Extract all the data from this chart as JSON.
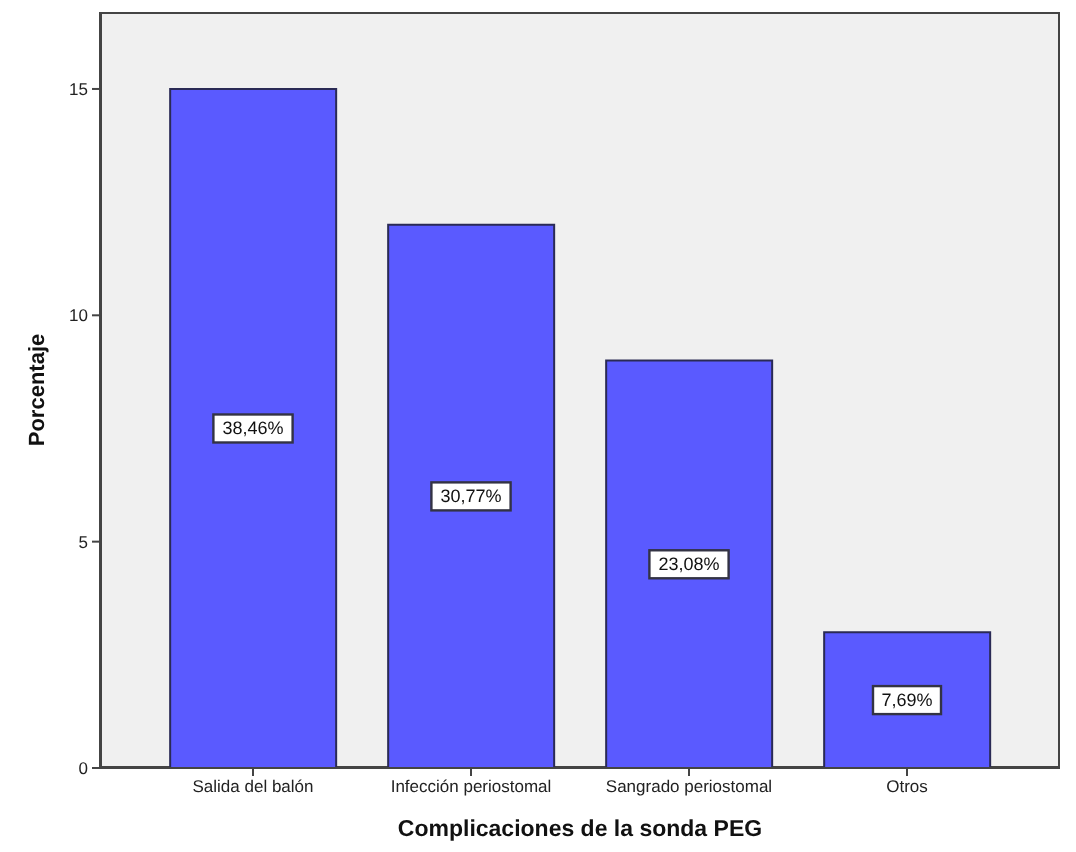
{
  "chart_data": {
    "type": "bar",
    "categories": [
      "Salida del balón",
      "Infección periostomal",
      "Sangrado periostomal",
      "Otros"
    ],
    "values": [
      15,
      12,
      9,
      3
    ],
    "color": "#5a5aff",
    "annotations": [
      {
        "text": "38,46%",
        "x": "Salida del balón",
        "y": 7.5
      },
      {
        "text": "30,77%",
        "x": "Infección periostomal",
        "y": 6
      },
      {
        "text": "23,08%",
        "x": "Sangrado periostomal",
        "y": 4.5
      },
      {
        "text": "7,69%",
        "x": "Otros",
        "y": 1.5
      }
    ],
    "xlabel": "Complicaciones de la sonda PEG",
    "ylabel": "Porcentaje",
    "ylim": [
      0,
      16.7
    ],
    "yticks": [
      0,
      5,
      10,
      15
    ]
  }
}
